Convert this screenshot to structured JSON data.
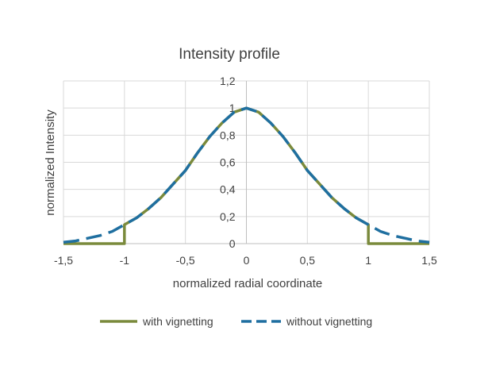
{
  "chart_data": {
    "type": "line",
    "title": "Intensity profile",
    "xlabel": "normalized radial coordinate",
    "ylabel": "normalized Intensity",
    "xlim": [
      -1.5,
      1.5
    ],
    "ylim": [
      0,
      1.2
    ],
    "x_ticks": [
      "-1,5",
      "-1",
      "-0,5",
      "0",
      "0,5",
      "1",
      "1,5"
    ],
    "y_ticks": [
      "0",
      "0,2",
      "0,4",
      "0,6",
      "0,8",
      "1",
      "1,2"
    ],
    "grid": true,
    "legend_position": "bottom",
    "series": [
      {
        "name": "with vignetting",
        "color": "#7a8a3c",
        "style": "solid",
        "x": [
          -1.5,
          -1.0,
          -1.0,
          -0.9,
          -0.8,
          -0.7,
          -0.6,
          -0.5,
          -0.4,
          -0.3,
          -0.2,
          -0.1,
          0.0,
          0.1,
          0.2,
          0.3,
          0.4,
          0.5,
          0.6,
          0.7,
          0.8,
          0.9,
          1.0,
          1.0,
          1.5
        ],
        "y": [
          0,
          0,
          0.14,
          0.19,
          0.26,
          0.34,
          0.44,
          0.54,
          0.67,
          0.79,
          0.89,
          0.97,
          1.0,
          0.97,
          0.89,
          0.79,
          0.67,
          0.54,
          0.44,
          0.34,
          0.26,
          0.19,
          0.14,
          0,
          0
        ]
      },
      {
        "name": "without vignetting",
        "color": "#1f6fa0",
        "style": "dashed",
        "x": [
          -1.5,
          -1.4,
          -1.3,
          -1.2,
          -1.1,
          -1.0,
          -0.9,
          -0.8,
          -0.7,
          -0.6,
          -0.5,
          -0.4,
          -0.3,
          -0.2,
          -0.1,
          0.0,
          0.1,
          0.2,
          0.3,
          0.4,
          0.5,
          0.6,
          0.7,
          0.8,
          0.9,
          1.0,
          1.1,
          1.2,
          1.3,
          1.4,
          1.5
        ],
        "y": [
          0.01,
          0.02,
          0.04,
          0.06,
          0.09,
          0.14,
          0.19,
          0.26,
          0.34,
          0.44,
          0.54,
          0.67,
          0.79,
          0.89,
          0.97,
          1.0,
          0.97,
          0.89,
          0.79,
          0.67,
          0.54,
          0.44,
          0.34,
          0.26,
          0.19,
          0.14,
          0.09,
          0.06,
          0.04,
          0.02,
          0.01
        ]
      }
    ]
  }
}
